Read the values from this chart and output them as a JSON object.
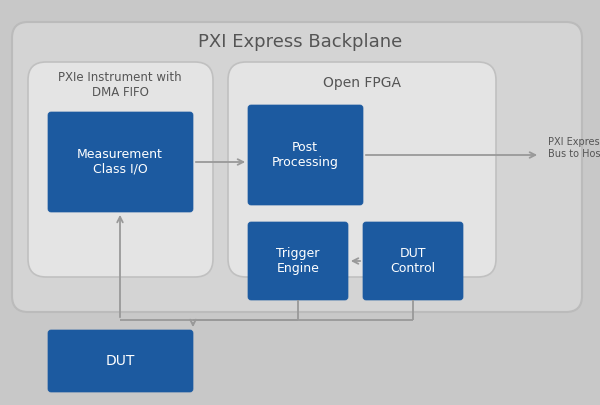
{
  "title": "PXI Express Backplane",
  "bg_outer": "#c8c8c8",
  "bg_panel": "#d4d4d4",
  "bg_inner": "#e8e8e8",
  "box_blue": "#1c5aa0",
  "border_color": "#aaaaaa",
  "text_dark": "#555555",
  "text_white": "#ffffff",
  "arrow_color": "#999999",
  "pxie_label": "PXIe Instrument with\nDMA FIFO",
  "fpga_label": "Open FPGA",
  "meas_label": "Measurement\nClass I/O",
  "post_label": "Post\nProcessing",
  "trigger_label": "Trigger\nEngine",
  "dut_ctrl_label": "DUT\nControl",
  "dut_label": "DUT",
  "pxi_bus_label": "PXI Express\nBus to Host",
  "fig_w": 6.0,
  "fig_h": 4.05,
  "dpi": 100
}
